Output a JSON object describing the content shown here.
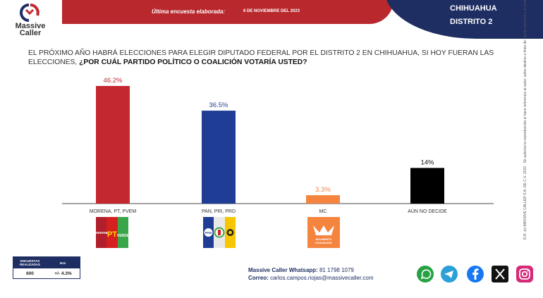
{
  "header": {
    "banner_label": "Última encuesta elaborada:",
    "banner_date": "6 DE NOVIEMBRE DEL 2023",
    "region_line1": "CHIHUAHUA",
    "region_line2": "DISTRITO 2",
    "brand_line1": "Massive",
    "brand_line2": "Caller"
  },
  "question": {
    "part1": "EL PRÓXIMO AÑO HABRÁ ELECCIONES PARA ELEGIR DIPUTADO FEDERAL POR EL DISTRITO 2 EN CHIHUAHUA, SI HOY FUERAN LAS ELECCIONES,",
    "part2": "¿POR CUÁL PARTIDO POLÍTICO O COALICIÓN  VOTARÍA USTED?"
  },
  "side_note": "D.R. (c) MASSIVE CALLER S.A. DE C.V. 2023 · Se autoriza la reproducción si hace referencia al autor, salvo destino a fines de fraude electoral o al contenido.",
  "chart_data": {
    "type": "bar",
    "title": "",
    "xlabel": "",
    "ylabel": "",
    "categories": [
      "MORENA, PT, PVEM",
      "PAN, PRI, PRD",
      "MC",
      "AÚN NO DECIDE"
    ],
    "values": [
      46.2,
      36.5,
      3.3,
      14
    ],
    "value_labels": [
      "46.2%",
      "36.5%",
      "3.3%",
      "14%"
    ],
    "bar_colors": [
      "#c4282f",
      "#1f3d94",
      "#f5843f",
      "#000000"
    ],
    "label_colors": [
      "#c4282f",
      "#1f3d94",
      "#f5843f",
      "#111111"
    ],
    "ylim": [
      0,
      46.2
    ],
    "grid": false,
    "legend": "none"
  },
  "party_logos": [
    {
      "name": "morena-pt-pvem-logo",
      "texts": [
        "morena",
        "PT",
        "VERDE"
      ],
      "colors": [
        "#b01f2b",
        "#d6201f",
        "#3aa64a"
      ]
    },
    {
      "name": "pan-pri-prd-logo",
      "texts": [
        "PAN",
        "PRI",
        "PRD"
      ],
      "colors": [
        "#1f3d94",
        "#ffffff",
        "#f7c600"
      ]
    },
    {
      "name": "mc-logo",
      "texts": [
        "MOVIMIENTO CIUDADANO"
      ],
      "colors": [
        "#f5843f"
      ]
    }
  ],
  "stats": {
    "col1_header": "ENCUESTAS REALIZADAS",
    "col2_header": "M.E.",
    "col1_value": "600",
    "col2_value": "+/- 4.3%"
  },
  "contact": {
    "whatsapp_label": "Massive Caller Whatsapp:",
    "whatsapp_value": "81 1798 1079",
    "email_label": "Correo:",
    "email_value": "carlos.campos.riojas@massivecaller.com"
  },
  "social": [
    {
      "icon": "whatsapp-icon",
      "color": "#25a244"
    },
    {
      "icon": "telegram-icon",
      "color": "#2b9fd8"
    },
    {
      "icon": "facebook-icon",
      "color": "#1877f2"
    },
    {
      "icon": "x-icon",
      "color": "#111111"
    },
    {
      "icon": "instagram-icon",
      "color": "#d62976"
    }
  ]
}
